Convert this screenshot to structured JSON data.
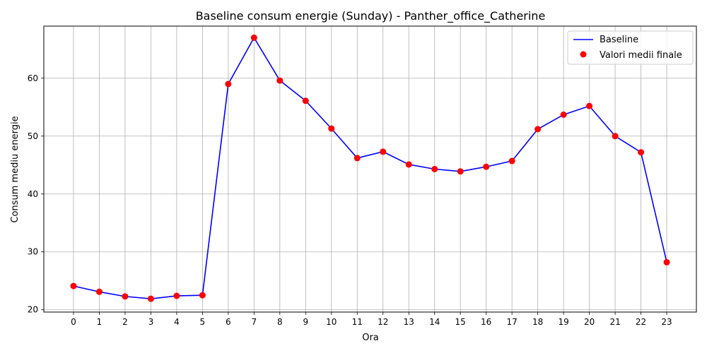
{
  "chart_data": {
    "type": "line",
    "title": "Baseline consum energie (Sunday) - Panther_office_Catherine",
    "xlabel": "Ora",
    "ylabel": "Consum mediu energie",
    "x": [
      0,
      1,
      2,
      3,
      4,
      5,
      6,
      7,
      8,
      9,
      10,
      11,
      12,
      13,
      14,
      15,
      16,
      17,
      18,
      19,
      20,
      21,
      22,
      23
    ],
    "xticks": [
      "0",
      "1",
      "2",
      "3",
      "4",
      "5",
      "6",
      "7",
      "8",
      "9",
      "10",
      "11",
      "12",
      "13",
      "14",
      "15",
      "16",
      "17",
      "18",
      "19",
      "20",
      "21",
      "22",
      "23"
    ],
    "yticks": [
      "20",
      "30",
      "40",
      "50",
      "60"
    ],
    "xlim": [
      -1.15,
      24.15
    ],
    "ylim": [
      19.6,
      69.0
    ],
    "grid": true,
    "legend_position": "top-right",
    "series": [
      {
        "name": "Baseline",
        "kind": "line",
        "color": "#0000ff",
        "values": [
          24.1,
          23.1,
          22.3,
          21.9,
          22.4,
          22.5,
          59.0,
          67.0,
          59.6,
          56.1,
          51.3,
          46.2,
          47.3,
          45.1,
          44.3,
          43.9,
          44.7,
          45.7,
          51.2,
          53.7,
          55.2,
          50.0,
          47.2,
          28.2
        ]
      },
      {
        "name": "Valori medii finale",
        "kind": "scatter",
        "color": "#ff0000",
        "values": [
          24.1,
          23.1,
          22.3,
          21.9,
          22.4,
          22.5,
          59.0,
          67.0,
          59.6,
          56.1,
          51.3,
          46.2,
          47.3,
          45.1,
          44.3,
          43.9,
          44.7,
          45.7,
          51.2,
          53.7,
          55.2,
          50.0,
          47.2,
          28.2
        ]
      }
    ]
  }
}
